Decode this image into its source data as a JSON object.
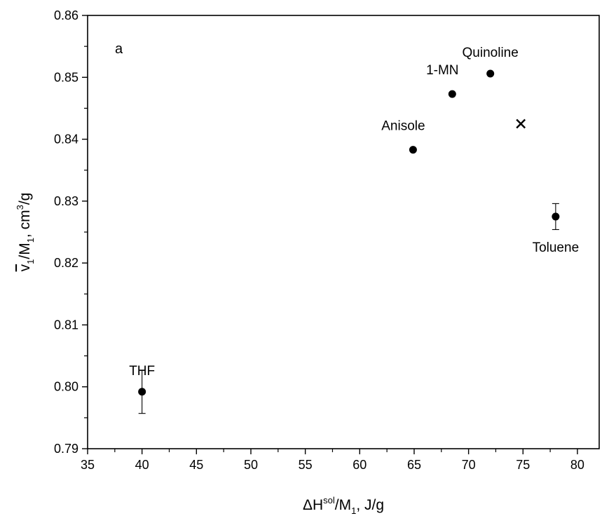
{
  "chart_data": {
    "type": "scatter",
    "panel_label": "a",
    "xlabel": {
      "main": "ΔH",
      "sup": "sol",
      "mid": "/M",
      "sub": "1",
      "tail": ", J/g"
    },
    "ylabel": {
      "main": "v",
      "sub": "1",
      "mid": "/M",
      "sub2": "1",
      "tail": ", cm",
      "sup": "3",
      "end": "/g"
    },
    "xlim": [
      35,
      82
    ],
    "ylim": [
      0.79,
      0.86
    ],
    "x_ticks": [
      35,
      40,
      45,
      50,
      55,
      60,
      65,
      70,
      75,
      80
    ],
    "y_ticks": [
      0.79,
      0.8,
      0.81,
      0.82,
      0.83,
      0.84,
      0.85,
      0.86
    ],
    "x_tick_labels": [
      "35",
      "40",
      "45",
      "50",
      "55",
      "60",
      "65",
      "70",
      "75",
      "80"
    ],
    "y_tick_labels": [
      "0.79",
      "0.80",
      "0.81",
      "0.82",
      "0.83",
      "0.84",
      "0.85",
      "0.86"
    ],
    "points": [
      {
        "label": "THF",
        "x": 40.0,
        "y": 0.7992,
        "yerr": 0.0035,
        "marker": "circle",
        "label_pos": "above"
      },
      {
        "label": "Anisole",
        "x": 64.9,
        "y": 0.8383,
        "marker": "circle",
        "label_pos": "above-left"
      },
      {
        "label": "1-MN",
        "x": 68.5,
        "y": 0.8473,
        "marker": "circle",
        "label_pos": "above-left"
      },
      {
        "label": "Quinoline",
        "x": 72.0,
        "y": 0.8506,
        "marker": "circle",
        "label_pos": "above"
      },
      {
        "label": "",
        "x": 74.8,
        "y": 0.8425,
        "marker": "cross"
      },
      {
        "label": "Toluene",
        "x": 78.0,
        "y": 0.8275,
        "yerr": 0.0021,
        "marker": "circle",
        "label_pos": "below"
      }
    ],
    "grid": false
  }
}
